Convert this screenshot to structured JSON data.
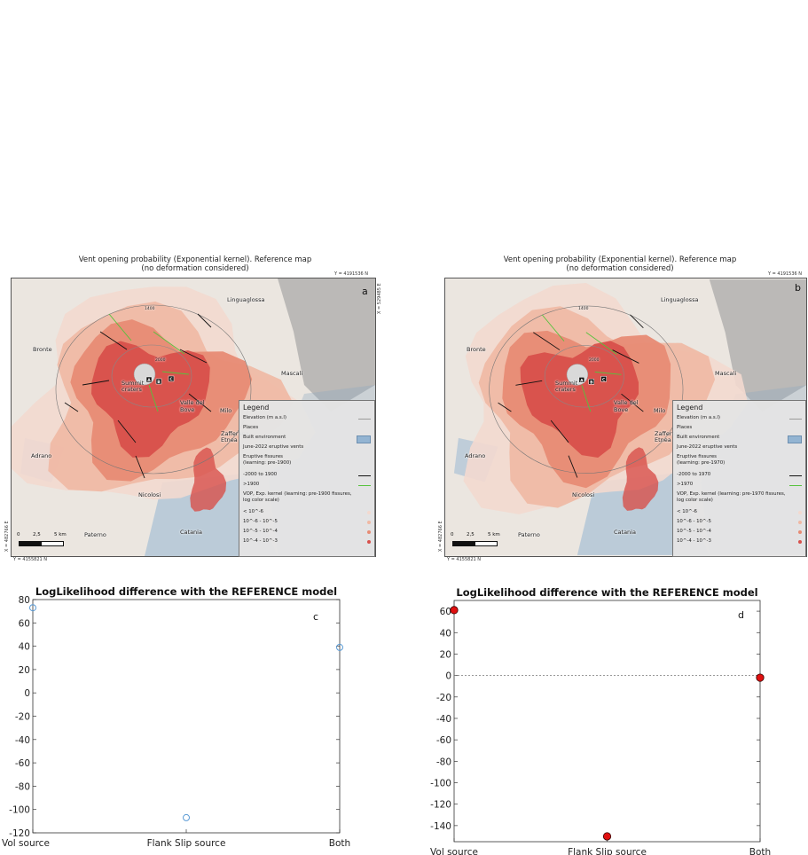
{
  "maps": [
    {
      "id": "a",
      "title_line1": "Vent opening probability (Exponential kernel).  Reference map",
      "title_line2": "(no deformation considered)",
      "coord_top": "Y = 4191536 N",
      "coord_right": "X = 529485 E",
      "coord_left": "X = 482766 E",
      "coord_bottom": "Y = 4155821 N",
      "letter": "a",
      "legend": {
        "title": "Legend",
        "elevation": "Elevation (m a.s.l)",
        "places": "Places",
        "built": "Built environment",
        "vents": "June-2022 eruptive vents",
        "fissures": "Eruptive fissures",
        "fissures_learning": "(learning: pre-1900)",
        "period_old": "-2000 to 1900",
        "period_new": ">1900",
        "vop_line1": "VOP, Exp. kernel (learning: pre-1900 fissures,",
        "vop_line2": "log color scale)",
        "class1": "< 10^-6",
        "class2": "10^-6 - 10^-5",
        "class3": "10^-5 - 10^-4",
        "class4": "10^-4 - 10^-3"
      }
    },
    {
      "id": "b",
      "title_line1": "Vent opening probability (Exponential kernel).  Reference map",
      "title_line2": "(no deformation considered)",
      "coord_top": "Y = 4191536 N",
      "coord_right": "",
      "coord_left": "X = 482766 E",
      "coord_bottom": "Y = 4155821 N",
      "letter": "b",
      "legend": {
        "title": "Legend",
        "elevation": "Elevation (m a.s.l)",
        "places": "Places",
        "built": "Built environment",
        "vents": "June-2022 eruptive vents",
        "fissures": "Eruptive fissures",
        "fissures_learning": "(learning: pre-1970)",
        "period_old": "-2000 to 1970",
        "period_new": ">1970",
        "vop_line1": "VOP, Exp. kernel (learning: pre-1970 fissures,",
        "vop_line2": "log color scale)",
        "class1": "< 10^-6",
        "class2": "10^-6 - 10^-5",
        "class3": "10^-5 - 10^-4",
        "class4": "10^-4 - 10^-3"
      }
    }
  ],
  "places": {
    "linguaglossa": "Linguaglossa",
    "bronte": "Bronte",
    "mascali": "Mascali",
    "valle_line1": "Valle del",
    "valle_line2": "Bove",
    "milo": "Milo",
    "zafferana_line1": "Zafferana",
    "zafferana_line2": "Etnea",
    "adrano": "Adrano",
    "nicolosi": "Nicolosi",
    "paterno": "Paterno",
    "summit_line1": "Summit",
    "summit_line2": "craters",
    "catania": "Catania"
  },
  "vent_labels": [
    "A",
    "B",
    "C"
  ],
  "elevation_labels": [
    "1400",
    "2000"
  ],
  "scalebar": {
    "zero": "0",
    "mid": "2,5",
    "end": "5 km"
  },
  "colors": {
    "vop_class1": "#f3d9cf",
    "vop_class2": "#f0b8a3",
    "vop_class3": "#e78b74",
    "vop_class4": "#d8504b",
    "built": "#93b4d2",
    "fissure_old": "#111111",
    "fissure_new": "#56c23d",
    "marker_c_edge": "#5b9bd5",
    "marker_d_fill": "#e01010"
  },
  "chart_data": [
    {
      "type": "scatter",
      "letter": "c",
      "title": "LogLikelihood difference with the REFERENCE model",
      "categories": [
        "Vol source",
        "Flank Slip source",
        "Both"
      ],
      "values": [
        73,
        -107,
        39
      ],
      "ylim": [
        -120,
        80
      ],
      "yticks": [
        80,
        60,
        40,
        20,
        0,
        -20,
        -40,
        -60,
        -80,
        -100,
        -120
      ],
      "marker": "open-circle",
      "zero_line": false
    },
    {
      "type": "scatter",
      "letter": "d",
      "title": "LogLikelihood difference with the REFERENCE model",
      "categories": [
        "Vol source",
        "Flank Slip source",
        "Both"
      ],
      "values": [
        61,
        -150,
        -2
      ],
      "ylim": [
        -155,
        70
      ],
      "yticks": [
        60,
        40,
        20,
        0,
        -20,
        -40,
        -60,
        -80,
        -100,
        -120,
        -140
      ],
      "marker": "filled-circle",
      "zero_line": true
    }
  ]
}
